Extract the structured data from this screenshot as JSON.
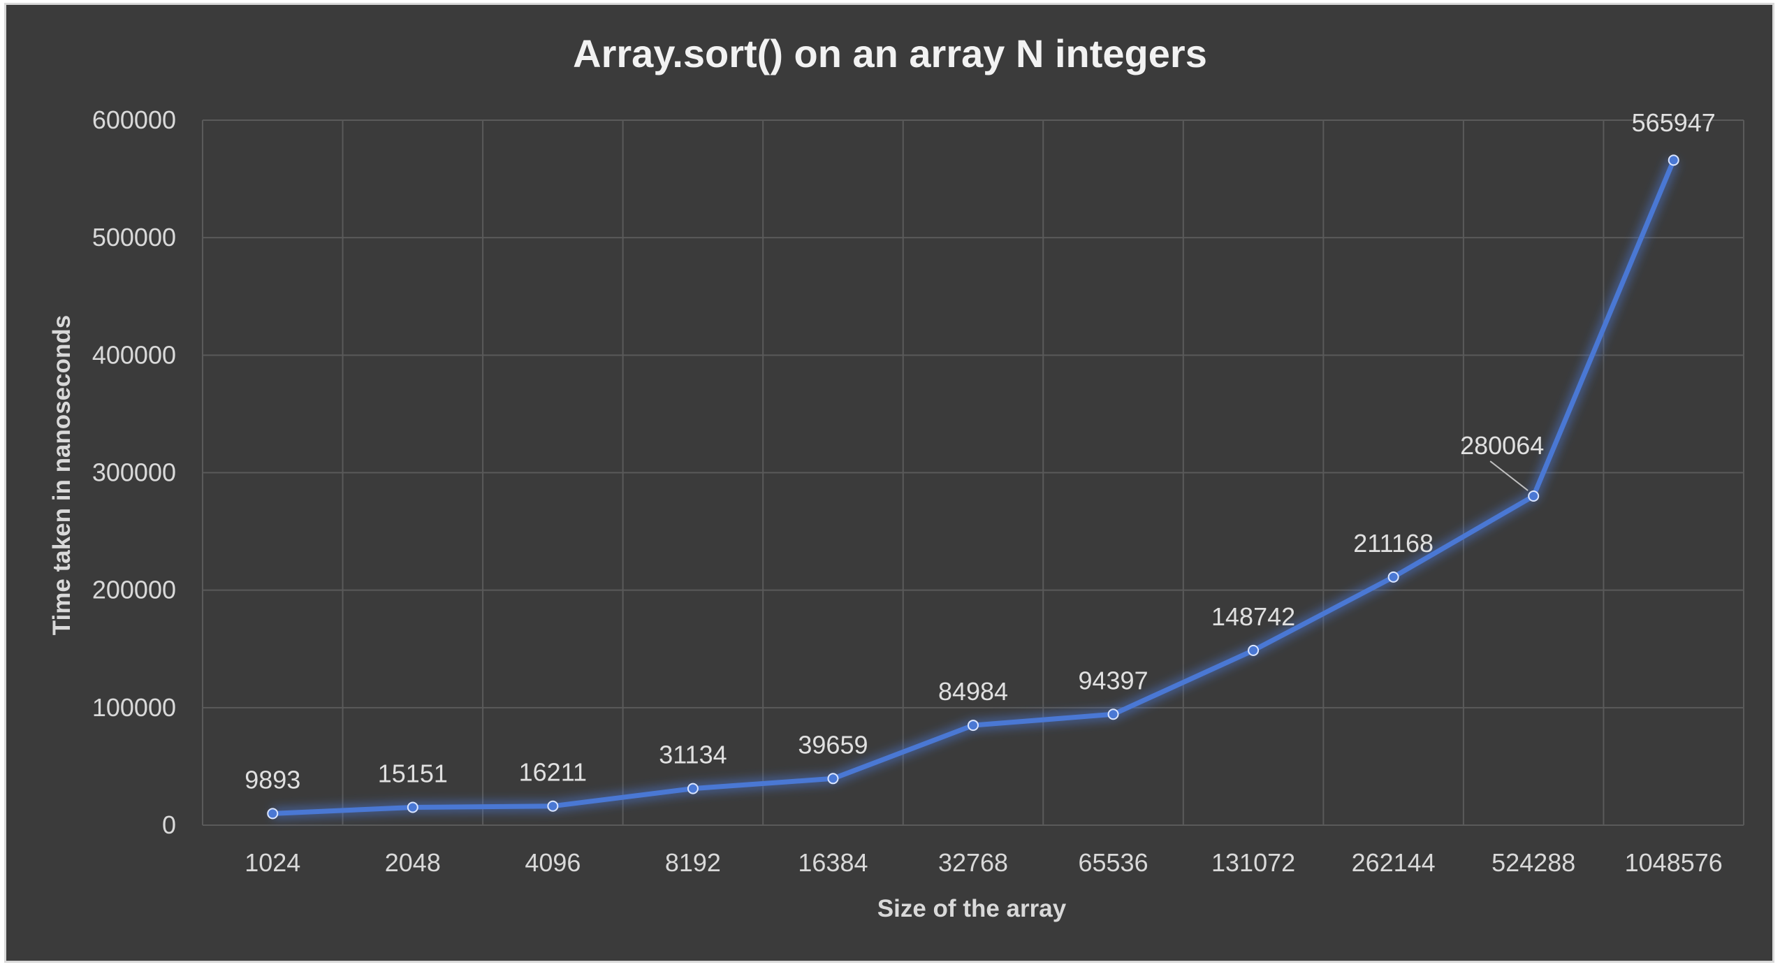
{
  "chart_data": {
    "type": "line",
    "title": "Array.sort() on an array N integers",
    "xlabel": "Size of the array",
    "ylabel": "Time taken in nanoseconds",
    "categories": [
      "1024",
      "2048",
      "4096",
      "8192",
      "16384",
      "32768",
      "65536",
      "131072",
      "262144",
      "524288",
      "1048576"
    ],
    "series": [
      {
        "values": [
          9893,
          15151,
          16211,
          31134,
          39659,
          84984,
          94397,
          148742,
          211168,
          280064,
          565947
        ]
      }
    ],
    "ylim": [
      0,
      600000
    ],
    "yticks": [
      0,
      100000,
      200000,
      300000,
      400000,
      500000,
      600000
    ],
    "grid": true,
    "legend": "none",
    "colors": {
      "background": "#3b3b3b",
      "line": "#4a78d4",
      "grid": "#5a5a5a",
      "text": "#d9d9d9"
    }
  }
}
